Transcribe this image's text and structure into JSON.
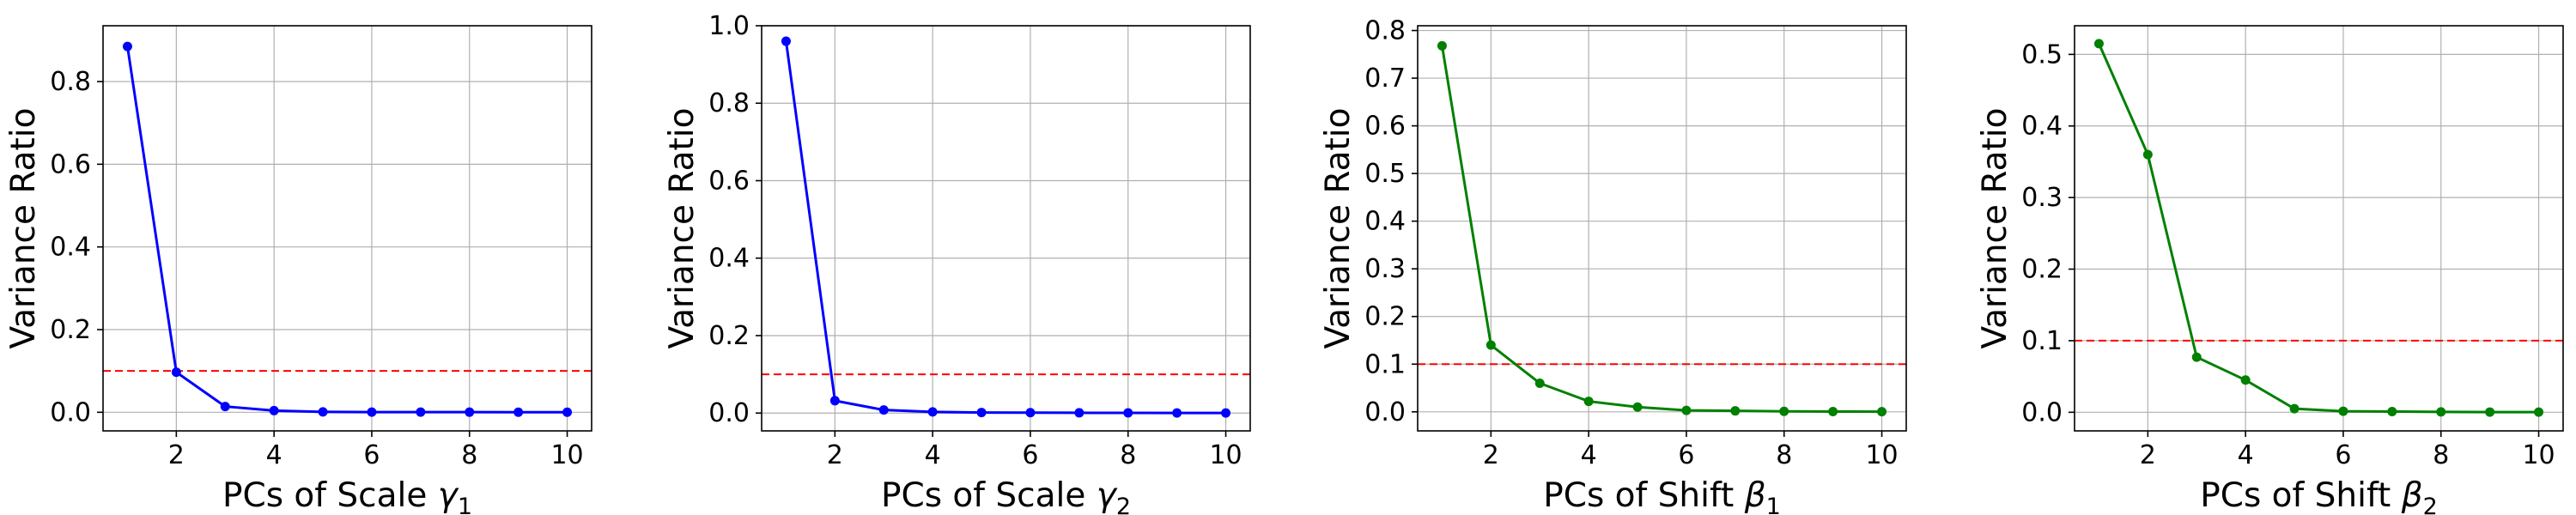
{
  "chart_data": [
    {
      "type": "line",
      "xlabel_main": "PCs of Scale ",
      "xlabel_symbol": "γ",
      "xlabel_sub": "1",
      "ylabel": "Variance Ratio",
      "x": [
        1,
        2,
        3,
        4,
        5,
        6,
        7,
        8,
        9,
        10
      ],
      "series": [
        {
          "values": [
            0.885,
            0.097,
            0.014,
            0.004,
            0.001,
            0.0005,
            0.0004,
            0.0003,
            0.0002,
            0.0001
          ]
        }
      ],
      "color": "#0000ff",
      "threshold": 0.1,
      "xlim": [
        0.5,
        10.5
      ],
      "ylim": [
        -0.045,
        0.935
      ],
      "xticks": [
        2,
        4,
        6,
        8,
        10
      ],
      "yticks": [
        0.0,
        0.2,
        0.4,
        0.6,
        0.8
      ],
      "ytick_labels": [
        "0.0",
        "0.2",
        "0.4",
        "0.6",
        "0.8"
      ],
      "grid": true
    },
    {
      "type": "line",
      "xlabel_main": "PCs of Scale ",
      "xlabel_symbol": "γ",
      "xlabel_sub": "2",
      "ylabel": "Variance Ratio",
      "x": [
        1,
        2,
        3,
        4,
        5,
        6,
        7,
        8,
        9,
        10
      ],
      "series": [
        {
          "values": [
            0.96,
            0.032,
            0.008,
            0.003,
            0.0015,
            0.001,
            0.0007,
            0.0005,
            0.0003,
            0.0002
          ]
        }
      ],
      "color": "#0000ff",
      "threshold": 0.1,
      "xlim": [
        0.5,
        10.5
      ],
      "ylim": [
        -0.046,
        1.0
      ],
      "xticks": [
        2,
        4,
        6,
        8,
        10
      ],
      "yticks": [
        0.0,
        0.2,
        0.4,
        0.6,
        0.8,
        1.0
      ],
      "ytick_labels": [
        "0.0",
        "0.2",
        "0.4",
        "0.6",
        "0.8",
        "1.0"
      ],
      "grid": true
    },
    {
      "type": "line",
      "xlabel_main": "PCs of Shift ",
      "xlabel_symbol": "β",
      "xlabel_sub": "1",
      "ylabel": "Variance Ratio",
      "x": [
        1,
        2,
        3,
        4,
        5,
        6,
        7,
        8,
        9,
        10
      ],
      "series": [
        {
          "values": [
            0.768,
            0.14,
            0.06,
            0.022,
            0.01,
            0.003,
            0.002,
            0.001,
            0.0005,
            0.0003
          ]
        }
      ],
      "color": "#008000",
      "threshold": 0.1,
      "xlim": [
        0.5,
        10.5
      ],
      "ylim": [
        -0.04,
        0.81
      ],
      "xticks": [
        2,
        4,
        6,
        8,
        10
      ],
      "yticks": [
        0.0,
        0.1,
        0.2,
        0.3,
        0.4,
        0.5,
        0.6,
        0.7,
        0.8
      ],
      "ytick_labels": [
        "0.0",
        "0.1",
        "0.2",
        "0.3",
        "0.4",
        "0.5",
        "0.6",
        "0.7",
        "0.8"
      ],
      "grid": true
    },
    {
      "type": "line",
      "xlabel_main": "PCs of Shift ",
      "xlabel_symbol": "β",
      "xlabel_sub": "2",
      "ylabel": "Variance Ratio",
      "x": [
        1,
        2,
        3,
        4,
        5,
        6,
        7,
        8,
        9,
        10
      ],
      "series": [
        {
          "values": [
            0.515,
            0.36,
            0.077,
            0.045,
            0.005,
            0.0015,
            0.001,
            0.0005,
            0.0003,
            0.0002
          ]
        }
      ],
      "color": "#008000",
      "threshold": 0.1,
      "xlim": [
        0.5,
        10.5
      ],
      "ylim": [
        -0.026,
        0.54
      ],
      "xticks": [
        2,
        4,
        6,
        8,
        10
      ],
      "yticks": [
        0.0,
        0.1,
        0.2,
        0.3,
        0.4,
        0.5
      ],
      "ytick_labels": [
        "0.0",
        "0.1",
        "0.2",
        "0.3",
        "0.4",
        "0.5"
      ],
      "grid": true
    }
  ],
  "style": {
    "threshold_color": "#ff0000",
    "grid_color": "#b0b0b0",
    "axis_color": "#000000"
  }
}
